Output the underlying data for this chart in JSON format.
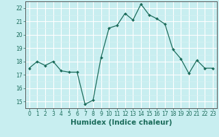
{
  "x": [
    0,
    1,
    2,
    3,
    4,
    5,
    6,
    7,
    8,
    9,
    10,
    11,
    12,
    13,
    14,
    15,
    16,
    17,
    18,
    19,
    20,
    21,
    22,
    23
  ],
  "y": [
    17.5,
    18.0,
    17.7,
    18.0,
    17.3,
    17.2,
    17.2,
    14.8,
    15.1,
    18.3,
    20.5,
    20.7,
    21.6,
    21.1,
    22.3,
    21.5,
    21.2,
    20.8,
    18.9,
    18.2,
    17.1,
    18.1,
    17.5,
    17.5
  ],
  "line_color": "#1a6b5a",
  "marker": "D",
  "marker_size": 2.0,
  "line_width": 0.9,
  "bg_color": "#c8eef0",
  "grid_major_color": "#ffffff",
  "grid_minor_color": "#daf2f2",
  "xlabel": "Humidex (Indice chaleur)",
  "xlim": [
    -0.5,
    23.5
  ],
  "ylim": [
    14.5,
    22.5
  ],
  "yticks": [
    15,
    16,
    17,
    18,
    19,
    20,
    21,
    22
  ],
  "xticks": [
    0,
    1,
    2,
    3,
    4,
    5,
    6,
    7,
    8,
    9,
    10,
    11,
    12,
    13,
    14,
    15,
    16,
    17,
    18,
    19,
    20,
    21,
    22,
    23
  ],
  "tick_fontsize": 5.5,
  "label_fontsize": 7.5,
  "tick_color": "#1a6b5a",
  "axis_color": "#1a6b5a",
  "spine_color": "#555555"
}
